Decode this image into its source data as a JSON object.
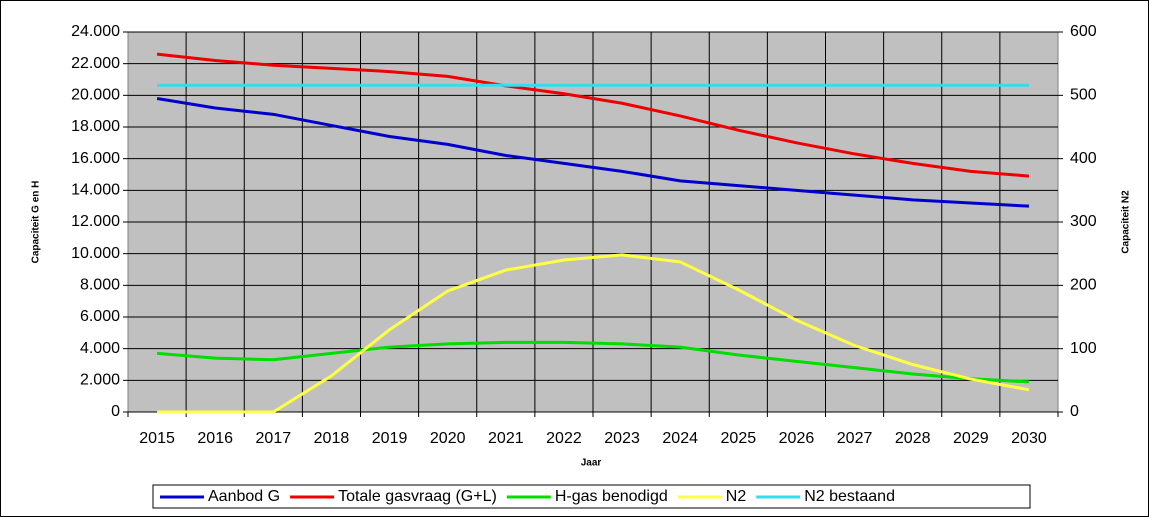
{
  "chart_data": {
    "type": "line",
    "x_label": "Jaar",
    "y_label": "Capaciteit G en H",
    "y2_label": "Capaciteit N2",
    "categories": [
      "2015",
      "2016",
      "2017",
      "2018",
      "2019",
      "2020",
      "2021",
      "2022",
      "2023",
      "2024",
      "2025",
      "2026",
      "2027",
      "2028",
      "2029",
      "2030"
    ],
    "series": [
      {
        "name": "Aanbod G",
        "color": "#0000cc",
        "values": [
          19800,
          19200,
          18800,
          18100,
          17400,
          16900,
          16200,
          15700,
          15200,
          14600,
          14300,
          14000,
          13700,
          13400,
          13200,
          13000
        ]
      },
      {
        "name": "Totale gasvraag (G+L)",
        "color": "#ee0000",
        "values": [
          22600,
          22200,
          21900,
          21700,
          21500,
          21200,
          20600,
          20100,
          19500,
          18700,
          17800,
          17000,
          16300,
          15700,
          15200,
          14900
        ]
      },
      {
        "name": "H-gas benodigd",
        "color": "#00dd00",
        "values": [
          3700,
          3400,
          3300,
          3700,
          4100,
          4300,
          4400,
          4400,
          4300,
          4100,
          3600,
          3200,
          2800,
          2400,
          2100,
          1900
        ]
      },
      {
        "name": "N2",
        "color": "#ffff44",
        "axis": "y2",
        "values": [
          0,
          0,
          0,
          57,
          130,
          191,
          224,
          240,
          248,
          237,
          193,
          145,
          105,
          75,
          52,
          35
        ]
      },
      {
        "name": "N2 bestaand",
        "color": "#33ddee",
        "axis": "y2",
        "values": [
          516,
          516,
          516,
          516,
          516,
          516,
          516,
          516,
          516,
          516,
          516,
          516,
          516,
          516,
          516,
          516
        ]
      }
    ],
    "ylim": [
      0,
      24000
    ],
    "yticks": [
      0,
      {
        "value": 2000,
        "label": "2.000"
      },
      {
        "value": 4000,
        "label": "4.000"
      },
      {
        "value": 6000,
        "label": "6.000"
      },
      {
        "value": 8000,
        "label": "8.000"
      },
      {
        "value": 10000,
        "label": "10.000"
      },
      {
        "value": 12000,
        "label": "12.000"
      },
      {
        "value": 14000,
        "label": "14.000"
      },
      {
        "value": 16000,
        "label": "16.000"
      },
      {
        "value": 18000,
        "label": "18.000"
      },
      {
        "value": 20000,
        "label": "20.000"
      },
      {
        "value": 22000,
        "label": "22.000"
      },
      {
        "value": 24000,
        "label": "24.000"
      }
    ],
    "y2lim": [
      0,
      600
    ],
    "y2ticks": [
      0,
      100,
      200,
      300,
      400,
      500,
      600
    ],
    "grid": true,
    "legend": "bottom",
    "plot_background": "#c0c0c0"
  }
}
